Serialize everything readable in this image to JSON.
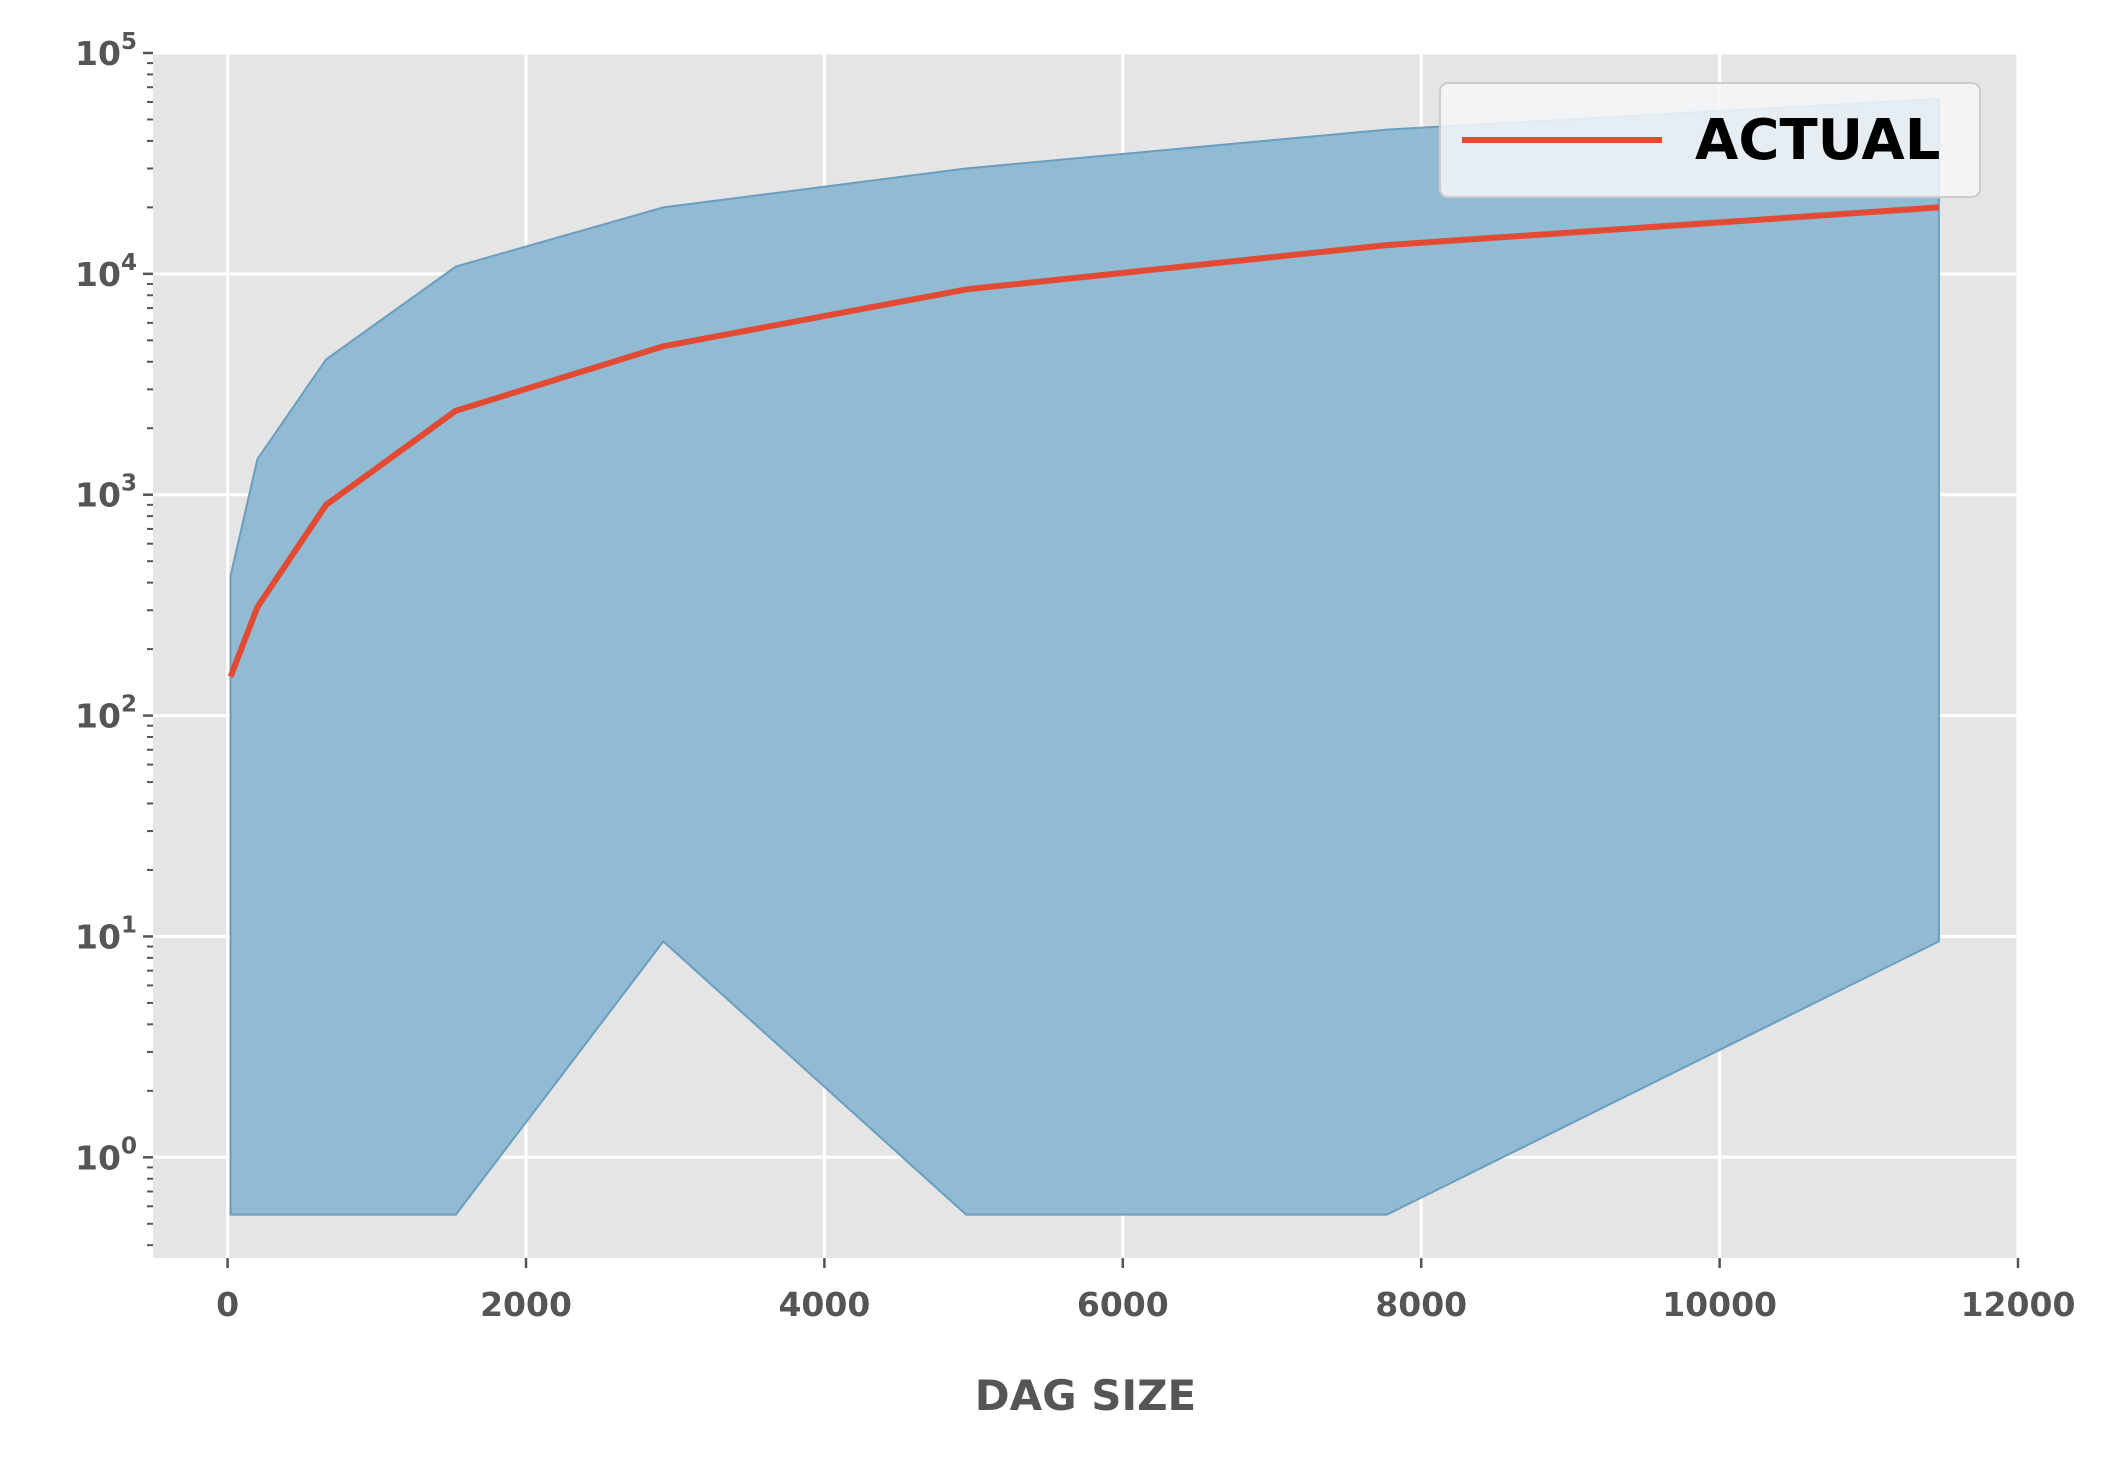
{
  "chart_data": {
    "type": "area",
    "xlabel": "DAG SIZE",
    "ylabel": "",
    "yscale": "log",
    "xlim": [
      -500,
      12000
    ],
    "ylim": [
      0.35,
      100000
    ],
    "grid": true,
    "legend_position": "top-right",
    "x_ticks": [
      0,
      2000,
      4000,
      6000,
      8000,
      10000,
      12000
    ],
    "x_tick_labels": [
      "0",
      "2000",
      "4000",
      "6000",
      "8000",
      "10000",
      "12000"
    ],
    "y_ticks": [
      1,
      10,
      100,
      1000,
      10000,
      100000
    ],
    "y_tick_labels": [
      {
        "base": "10",
        "exp": "0"
      },
      {
        "base": "10",
        "exp": "1"
      },
      {
        "base": "10",
        "exp": "2"
      },
      {
        "base": "10",
        "exp": "3"
      },
      {
        "base": "10",
        "exp": "4"
      },
      {
        "base": "10",
        "exp": "5"
      }
    ],
    "band": {
      "x": [
        20,
        200,
        660,
        1530,
        2920,
        4950,
        7770,
        11470
      ],
      "upper": [
        430,
        1450,
        4100,
        10800,
        20000,
        30000,
        45000,
        62000
      ],
      "lower": [
        0.55,
        0.55,
        0.55,
        0.55,
        9.5,
        0.55,
        0.55,
        9.5
      ],
      "color": "#8ab6d1",
      "edge_color": "#6a9ec0"
    },
    "series": [
      {
        "name": "ACTUAL",
        "color": "#e24a33",
        "x": [
          20,
          200,
          660,
          1530,
          2920,
          4950,
          7770,
          11470
        ],
        "y": [
          150,
          310,
          900,
          2400,
          4700,
          8500,
          13500,
          20000
        ]
      }
    ],
    "colors": {
      "background": "#e5e5e5",
      "grid": "#ffffff",
      "tick_text": "#555555"
    }
  }
}
